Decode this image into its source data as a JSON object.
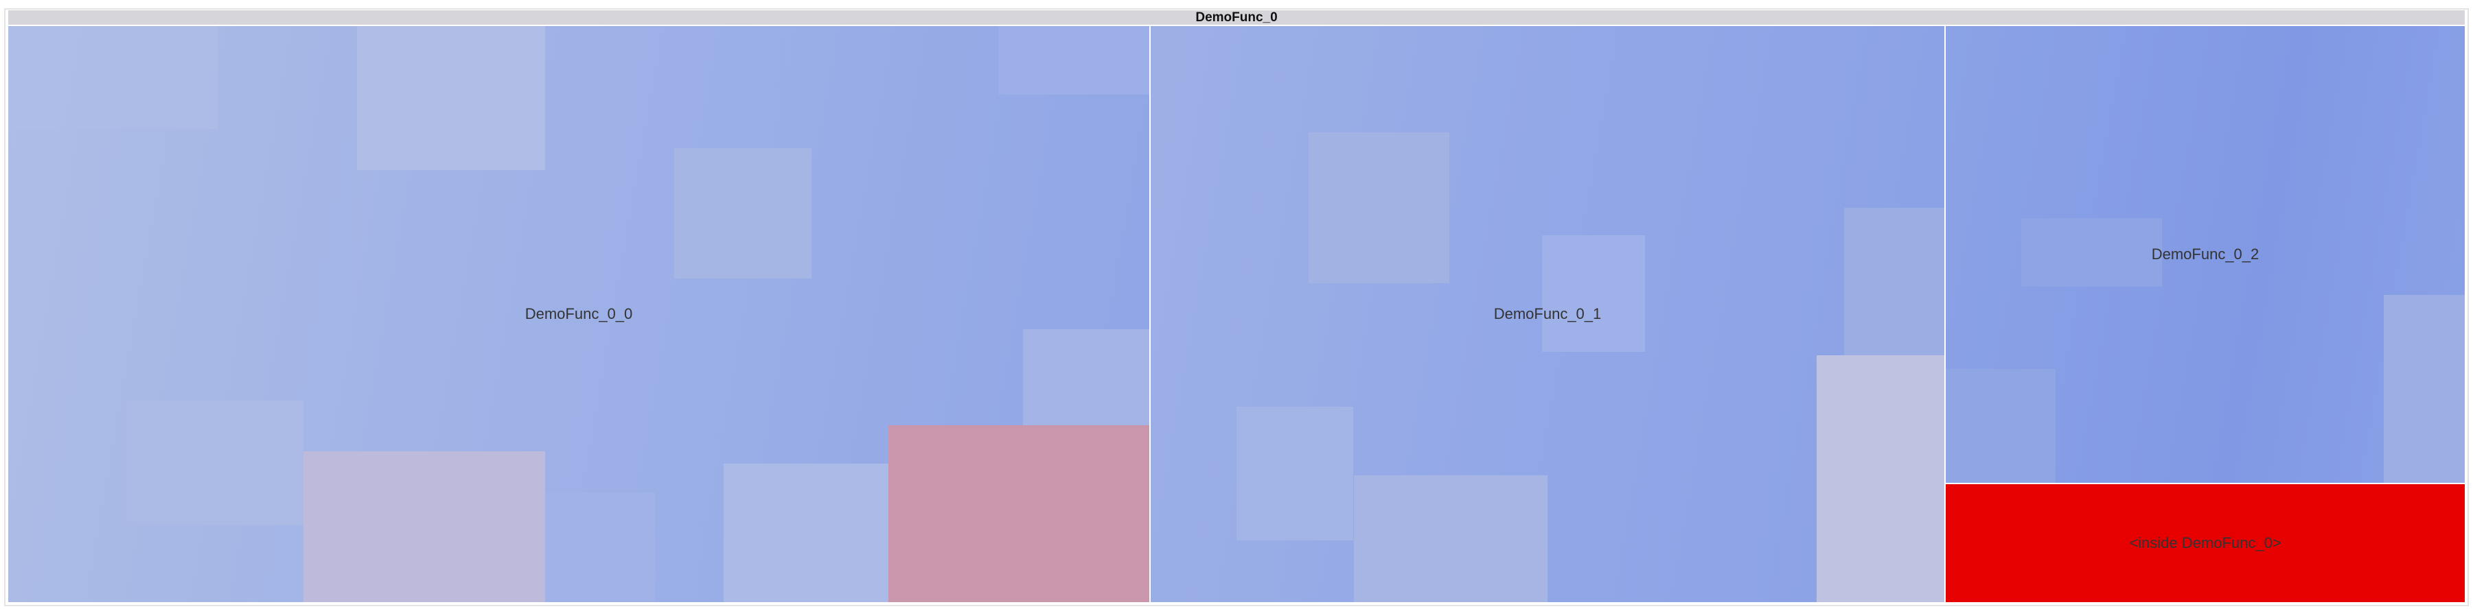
{
  "root": {
    "label": "DemoFunc_0"
  },
  "nodes": [
    {
      "id": "demofunc-0-0",
      "label": "DemoFunc_0_0"
    },
    {
      "id": "demofunc-0-1",
      "label": "DemoFunc_0_1"
    },
    {
      "id": "demofunc-0-2",
      "label": "DemoFunc_0_2"
    },
    {
      "id": "inside-demofunc-0",
      "label": "<inside DemoFunc_0>"
    }
  ],
  "colors": {
    "title_bar": "#d6d6da",
    "node_blue_light": "#a9b9e4",
    "node_blue": "#8ea4e6",
    "node_blue_dark": "#7f9ae4",
    "tile_pink": "#c996ac",
    "tile_lavender": "#bdbadb",
    "inside_red": "#e60000"
  }
}
